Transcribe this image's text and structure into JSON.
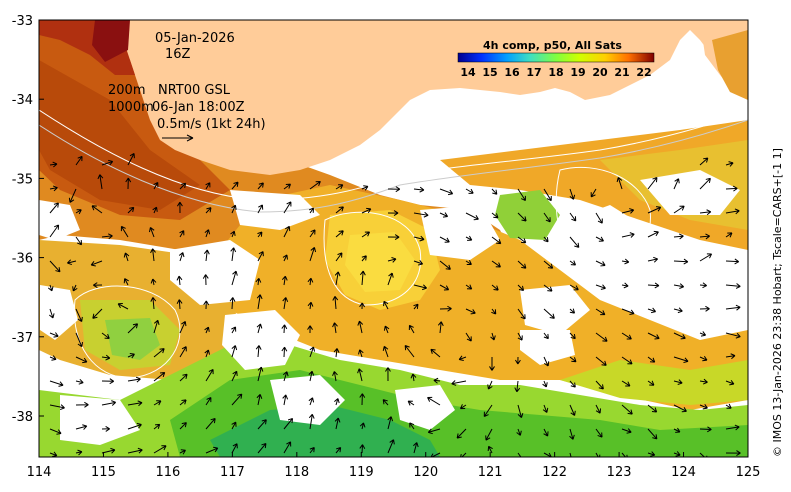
{
  "map": {
    "lon_ticks": [
      "114",
      "115",
      "116",
      "117",
      "118",
      "119",
      "120",
      "121",
      "122",
      "123",
      "124",
      "125"
    ],
    "lat_ticks": [
      "-33",
      "-34",
      "-35",
      "-36",
      "-37",
      "-38"
    ],
    "lon_range": [
      114,
      125
    ],
    "lat_range": [
      -38.5,
      -33
    ]
  },
  "annotations": {
    "date": "05-Jan-2026",
    "hour": "16Z",
    "isobath_1": "200m",
    "isobath_2": "1000m",
    "current_product": "NRT00 GSL",
    "current_time": "06-Jan 18:00Z",
    "scale_label": "0.5m/s (1kt 24h)"
  },
  "colorbar": {
    "title": "4h comp, p50, All Sats",
    "ticks": [
      "14",
      "15",
      "16",
      "17",
      "18",
      "19",
      "20",
      "21",
      "22"
    ],
    "colors": [
      "#00008f",
      "#0030ff",
      "#00a0ff",
      "#40e0c0",
      "#80ff40",
      "#d0ff00",
      "#ffd000",
      "#ff7000",
      "#c00000",
      "#800000"
    ]
  },
  "credit": "© IMOS 13-Jan-2026 23:38 Hobart; Tscale=CARS+[-1 1]",
  "colors": {
    "land": "#ffcc99",
    "warm": "#d86a10",
    "orange": "#f0a020",
    "yellow": "#f8d038",
    "lime": "#c8e020",
    "green": "#58c020",
    "teal": "#20b060",
    "hot": "#a82008"
  }
}
